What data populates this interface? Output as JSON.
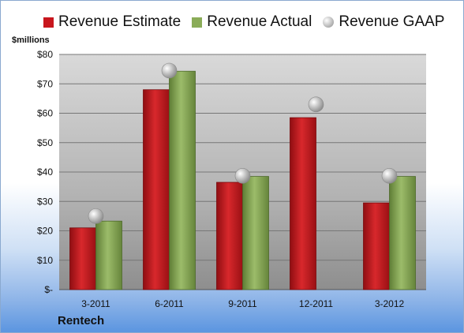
{
  "legend": {
    "estimate": "Revenue Estimate",
    "actual": "Revenue Actual",
    "gaap": "Revenue GAAP"
  },
  "unit_label": "$millions",
  "company": "Rentech",
  "colors": {
    "estimate": "#c8161d",
    "actual": "#8aac58",
    "gaap": "#b5b5b5"
  },
  "chart_data": {
    "type": "bar",
    "categories": [
      "3-2011",
      "6-2011",
      "9-2011",
      "12-2011",
      "3-2012"
    ],
    "series": [
      {
        "name": "Revenue Estimate",
        "values": [
          21,
          68,
          36.5,
          58.5,
          29.5
        ]
      },
      {
        "name": "Revenue Actual",
        "values": [
          23.3,
          74.3,
          38.5,
          null,
          38.5
        ]
      },
      {
        "name": "Revenue GAAP",
        "values": [
          25,
          74.5,
          38.7,
          63,
          38.7
        ],
        "style": "marker"
      }
    ],
    "ylim": [
      0,
      80
    ],
    "yticks": [
      "$-",
      "$10",
      "$20",
      "$30",
      "$40",
      "$50",
      "$60",
      "$70",
      "$80"
    ],
    "ylabel": "$millions",
    "grid": true,
    "legend_position": "top"
  }
}
